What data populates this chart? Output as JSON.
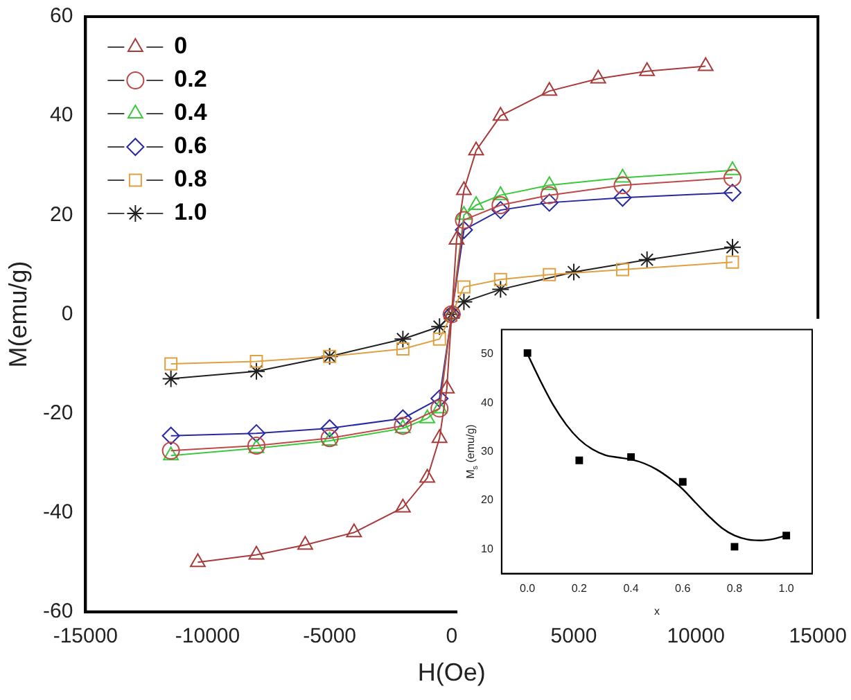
{
  "chart_data": [
    {
      "type": "line",
      "xlabel": "H(Oe)",
      "ylabel": "M(emu/g)",
      "xlim": [
        -15000,
        15000
      ],
      "xticks": [
        -15000,
        -10000,
        -5000,
        0,
        5000,
        10000,
        15000
      ],
      "ylim": [
        -60,
        60
      ],
      "yticks": [
        -60,
        -40,
        -20,
        0,
        20,
        40,
        60
      ],
      "grid": false,
      "legend": "top left",
      "series": [
        {
          "name": "0",
          "color": "#a83a3a",
          "marker": "triangle",
          "x": [
            -10400,
            -8000,
            -6000,
            -4000,
            -2000,
            -1000,
            -500,
            -200,
            0,
            200,
            500,
            1000,
            2000,
            4000,
            6000,
            8000,
            10400
          ],
          "values": [
            -50,
            -48.5,
            -46.5,
            -44,
            -39,
            -33,
            -25,
            -15,
            0,
            15,
            25,
            33,
            40,
            45,
            47.5,
            49,
            50
          ]
        },
        {
          "name": "0.2",
          "color": "#c04848",
          "marker": "circle",
          "x": [
            -11500,
            -8000,
            -5000,
            -2000,
            -500,
            0,
            500,
            2000,
            4000,
            7000,
            11500
          ],
          "values": [
            -27.5,
            -26.5,
            -25,
            -22.5,
            -19,
            0,
            19,
            22,
            24,
            26,
            27.5
          ]
        },
        {
          "name": "0.4",
          "color": "#3cc83c",
          "marker": "triangle",
          "x": [
            -11500,
            -8000,
            -5000,
            -2000,
            -1000,
            -500,
            0,
            500,
            1000,
            2000,
            4000,
            7000,
            11500
          ],
          "values": [
            -28.5,
            -27,
            -25.5,
            -23,
            -21,
            -19,
            0,
            20,
            22,
            24,
            26,
            27.5,
            29
          ]
        },
        {
          "name": "0.6",
          "color": "#2828a0",
          "marker": "diamond",
          "x": [
            -11500,
            -8000,
            -5000,
            -2000,
            -500,
            0,
            500,
            2000,
            4000,
            7000,
            11500
          ],
          "values": [
            -24.5,
            -24,
            -23,
            -21,
            -17,
            0,
            17,
            21,
            22.5,
            23.5,
            24.5
          ]
        },
        {
          "name": "0.8",
          "color": "#e0a040",
          "marker": "square",
          "x": [
            -11500,
            -8000,
            -5000,
            -2000,
            -500,
            0,
            500,
            2000,
            4000,
            7000,
            11500
          ],
          "values": [
            -10,
            -9.5,
            -8.5,
            -7,
            -5,
            0,
            5.5,
            7,
            8,
            9,
            10.5
          ]
        },
        {
          "name": "1.0",
          "color": "#202020",
          "marker": "cross",
          "x": [
            -11500,
            -8000,
            -5000,
            -2000,
            -500,
            0,
            500,
            2000,
            5000,
            8000,
            11500
          ],
          "values": [
            -13,
            -11.5,
            -8.5,
            -5,
            -2.5,
            0,
            2.5,
            5,
            8.5,
            11,
            13.5
          ]
        }
      ]
    },
    {
      "type": "scatter",
      "xlabel": "x",
      "ylabel": "M$_{s}$ (emu/g)",
      "xlim": [
        -0.1,
        1.1
      ],
      "xticks": [
        {
          "value": 0,
          "label": "0.0"
        },
        {
          "value": 0.2,
          "label": "0.2"
        },
        {
          "value": 0.4,
          "label": "0.4"
        },
        {
          "value": 0.6,
          "label": "0.6"
        },
        {
          "value": 0.8,
          "label": "0.8"
        },
        {
          "value": 1,
          "label": "1.0"
        }
      ],
      "ylim": [
        5,
        55
      ],
      "yticks": [
        10,
        20,
        30,
        40,
        50
      ],
      "grid": false,
      "series": [
        {
          "type": "scatter",
          "color": "#000000",
          "marker": "square",
          "x": [
            0,
            0.2,
            0.4,
            0.6,
            0.8,
            1.0
          ],
          "values": [
            50.2,
            28.2,
            28.9,
            23.8,
            10.5,
            12.8
          ]
        },
        {
          "type": "line",
          "color": "#000000",
          "marker": "none",
          "x": [
            0,
            0.05,
            0.1,
            0.15,
            0.2,
            0.25,
            0.3,
            0.35,
            0.4,
            0.45,
            0.5,
            0.55,
            0.6,
            0.65,
            0.7,
            0.75,
            0.8,
            0.85,
            0.9,
            0.95,
            1.0
          ],
          "values": [
            50,
            44.5,
            39.5,
            35.5,
            32.5,
            30.5,
            29.3,
            28.8,
            28.4,
            27.6,
            26.3,
            24.5,
            22.3,
            19.5,
            16.8,
            14.4,
            12.8,
            12,
            11.8,
            12.1,
            12.8
          ]
        }
      ]
    }
  ]
}
